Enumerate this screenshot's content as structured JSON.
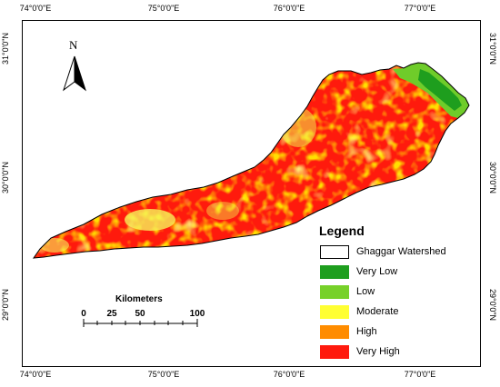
{
  "map": {
    "top_ticks": [
      "74°0'0\"E",
      "75°0'0\"E",
      "76°0'0\"E",
      "77°0'0\"E"
    ],
    "bottom_ticks": [
      "74°0'0\"E",
      "75°0'0\"E",
      "76°0'0\"E",
      "77°0'0\"E"
    ],
    "left_ticks": [
      "31°0'0\"N",
      "30°0'0\"N",
      "29°0'0\"N"
    ],
    "right_ticks": [
      "31°0'0\"N",
      "30°0'0\"N",
      "29°0'0\"N"
    ],
    "north_label": "N"
  },
  "legend": {
    "title": "Legend",
    "items": [
      {
        "label": "Ghaggar Watershed",
        "color": "#ffffff"
      },
      {
        "label": "Very Low",
        "color": "#1e9e1e"
      },
      {
        "label": "Low",
        "color": "#77d12a"
      },
      {
        "label": "Moderate",
        "color": "#ffff33"
      },
      {
        "label": "High",
        "color": "#ff8c00"
      },
      {
        "label": "Very High",
        "color": "#ff1a0d"
      }
    ]
  },
  "scalebar": {
    "title": "Kilometers",
    "labels": [
      "0",
      "25",
      "50",
      "100"
    ]
  }
}
